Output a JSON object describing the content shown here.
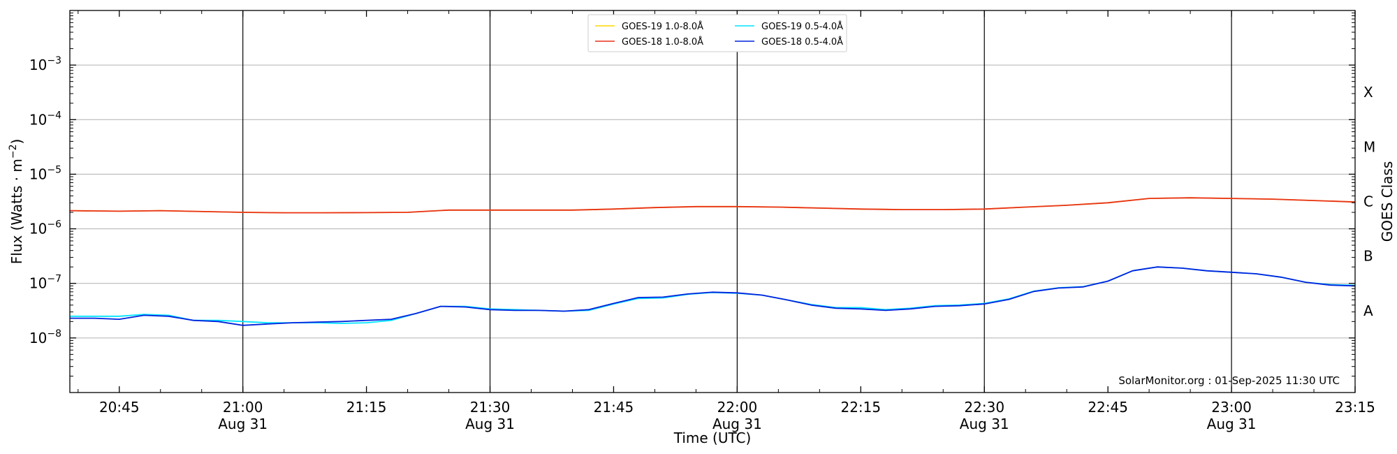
{
  "chart_data": {
    "type": "line",
    "xlabel": "Time (UTC)",
    "ylabel": "Flux (Watts · m",
    "ylabel_sup": "−2",
    "ylabel_close": ")",
    "y2label": "GOES Class",
    "x_range": [
      "2025-08-31 20:39",
      "2025-08-31 23:15"
    ],
    "ylim": [
      1e-09,
      0.01
    ],
    "y_scale": "log",
    "grid": "horizontal",
    "legend_position": "top-center",
    "x_ticks": [
      {
        "time": "20:45",
        "date": ""
      },
      {
        "time": "21:00",
        "date": "Aug 31"
      },
      {
        "time": "21:15",
        "date": ""
      },
      {
        "time": "21:30",
        "date": "Aug 31"
      },
      {
        "time": "21:45",
        "date": ""
      },
      {
        "time": "22:00",
        "date": "Aug 31"
      },
      {
        "time": "22:15",
        "date": ""
      },
      {
        "time": "22:30",
        "date": "Aug 31"
      },
      {
        "time": "22:45",
        "date": ""
      },
      {
        "time": "23:00",
        "date": "Aug 31"
      },
      {
        "time": "23:15",
        "date": ""
      }
    ],
    "y_ticks": [
      {
        "value": 1e-08,
        "base": "10",
        "exp": "−8"
      },
      {
        "value": 1e-07,
        "base": "10",
        "exp": "−7"
      },
      {
        "value": 1e-06,
        "base": "10",
        "exp": "−6"
      },
      {
        "value": 1e-05,
        "base": "10",
        "exp": "−5"
      },
      {
        "value": 0.0001,
        "base": "10",
        "exp": "−4"
      },
      {
        "value": 0.001,
        "base": "10",
        "exp": "−3"
      }
    ],
    "vertical_lines": [
      "21:00",
      "21:30",
      "22:00",
      "22:30",
      "23:00"
    ],
    "goes_classes": [
      {
        "label": "A",
        "value": 3.16e-08
      },
      {
        "label": "B",
        "value": 3.16e-07
      },
      {
        "label": "C",
        "value": 3.16e-06
      },
      {
        "label": "M",
        "value": 3.16e-05
      },
      {
        "label": "X",
        "value": 0.000316
      }
    ],
    "legend": [
      {
        "name": "GOES-19 1.0-8.0Å",
        "color": "#ffd700"
      },
      {
        "name": "GOES-19 0.5-4.0Å",
        "color": "#00e5ff"
      },
      {
        "name": "GOES-18 1.0-8.0Å",
        "color": "#e8311a"
      },
      {
        "name": "GOES-18 0.5-4.0Å",
        "color": "#0022dd"
      }
    ],
    "series": [
      {
        "name": "GOES-19 1.0-8.0Å",
        "color": "#ffd700",
        "x": [
          "20:39",
          "20:45",
          "20:50",
          "21:00",
          "21:05",
          "21:10",
          "21:15",
          "21:20",
          "21:25",
          "21:30",
          "21:35",
          "21:40",
          "21:45",
          "21:50",
          "21:55",
          "22:00",
          "22:05",
          "22:10",
          "22:15",
          "22:20",
          "22:25",
          "22:30",
          "22:35",
          "22:40",
          "22:45",
          "22:50",
          "22:55",
          "23:00",
          "23:05",
          "23:10",
          "23:15"
        ],
        "y": [
          2.15e-06,
          2.1e-06,
          2.15e-06,
          2e-06,
          1.97e-06,
          1.97e-06,
          1.98e-06,
          2e-06,
          2.2e-06,
          2.2e-06,
          2.2e-06,
          2.2e-06,
          2.3e-06,
          2.45e-06,
          2.55e-06,
          2.55e-06,
          2.5e-06,
          2.4e-06,
          2.3e-06,
          2.25e-06,
          2.25e-06,
          2.3e-06,
          2.5e-06,
          2.7e-06,
          3e-06,
          3.6e-06,
          3.7e-06,
          3.6e-06,
          3.5e-06,
          3.3e-06,
          3.1e-06
        ]
      },
      {
        "name": "GOES-18 1.0-8.0Å",
        "color": "#e8311a",
        "x": [
          "20:39",
          "20:45",
          "20:50",
          "21:00",
          "21:05",
          "21:10",
          "21:15",
          "21:20",
          "21:25",
          "21:30",
          "21:35",
          "21:40",
          "21:45",
          "21:50",
          "21:55",
          "22:00",
          "22:05",
          "22:10",
          "22:15",
          "22:20",
          "22:25",
          "22:30",
          "22:35",
          "22:40",
          "22:45",
          "22:50",
          "22:55",
          "23:00",
          "23:05",
          "23:10",
          "23:15"
        ],
        "y": [
          2.15e-06,
          2.1e-06,
          2.15e-06,
          2e-06,
          1.97e-06,
          1.97e-06,
          1.98e-06,
          2e-06,
          2.2e-06,
          2.2e-06,
          2.2e-06,
          2.2e-06,
          2.3e-06,
          2.45e-06,
          2.55e-06,
          2.55e-06,
          2.5e-06,
          2.4e-06,
          2.3e-06,
          2.25e-06,
          2.25e-06,
          2.3e-06,
          2.5e-06,
          2.7e-06,
          3e-06,
          3.6e-06,
          3.7e-06,
          3.6e-06,
          3.5e-06,
          3.3e-06,
          3.1e-06
        ]
      },
      {
        "name": "GOES-19 0.5-4.0Å",
        "color": "#00e5ff",
        "x": [
          "20:39",
          "20:42",
          "20:45",
          "20:48",
          "20:51",
          "20:54",
          "20:57",
          "21:00",
          "21:03",
          "21:06",
          "21:09",
          "21:12",
          "21:15",
          "21:18",
          "21:21",
          "21:24",
          "21:27",
          "21:30",
          "21:33",
          "21:36",
          "21:39",
          "21:42",
          "21:45",
          "21:48",
          "21:51",
          "21:54",
          "21:57",
          "22:00",
          "22:03",
          "22:06",
          "22:09",
          "22:12",
          "22:15",
          "22:18",
          "22:21",
          "22:24",
          "22:27",
          "22:30",
          "22:33",
          "22:36",
          "22:39",
          "22:42",
          "22:45",
          "22:48",
          "22:51",
          "22:54",
          "22:57",
          "23:00",
          "23:03",
          "23:06",
          "23:09",
          "23:12",
          "23:15"
        ],
        "y": [
          2.5e-08,
          2.5e-08,
          2.5e-08,
          2.7e-08,
          2.6e-08,
          2.1e-08,
          2.1e-08,
          2e-08,
          1.9e-08,
          1.9e-08,
          1.9e-08,
          1.85e-08,
          1.9e-08,
          2.1e-08,
          2.8e-08,
          3.8e-08,
          3.8e-08,
          3.4e-08,
          3.3e-08,
          3.2e-08,
          3.1e-08,
          3.2e-08,
          4.2e-08,
          5.3e-08,
          5.4e-08,
          6.3e-08,
          6.8e-08,
          6.6e-08,
          6.1e-08,
          5e-08,
          4.1e-08,
          3.6e-08,
          3.6e-08,
          3.3e-08,
          3.5e-08,
          3.9e-08,
          4e-08,
          4.3e-08,
          5.2e-08,
          7.2e-08,
          8.3e-08,
          8.7e-08,
          1.1e-07,
          1.7e-07,
          2e-07,
          1.9e-07,
          1.7e-07,
          1.6e-07,
          1.5e-07,
          1.3e-07,
          1.05e-07,
          9.5e-08,
          9.2e-08
        ]
      },
      {
        "name": "GOES-18 0.5-4.0Å",
        "color": "#0022dd",
        "x": [
          "20:39",
          "20:42",
          "20:45",
          "20:48",
          "20:51",
          "20:54",
          "20:57",
          "21:00",
          "21:03",
          "21:06",
          "21:09",
          "21:12",
          "21:15",
          "21:18",
          "21:21",
          "21:24",
          "21:27",
          "21:30",
          "21:33",
          "21:36",
          "21:39",
          "21:42",
          "21:45",
          "21:48",
          "21:51",
          "21:54",
          "21:57",
          "22:00",
          "22:03",
          "22:06",
          "22:09",
          "22:12",
          "22:15",
          "22:18",
          "22:21",
          "22:24",
          "22:27",
          "22:30",
          "22:33",
          "22:36",
          "22:39",
          "22:42",
          "22:45",
          "22:48",
          "22:51",
          "22:54",
          "22:57",
          "23:00",
          "23:03",
          "23:06",
          "23:09",
          "23:12",
          "23:15"
        ],
        "y": [
          2.3e-08,
          2.3e-08,
          2.2e-08,
          2.6e-08,
          2.5e-08,
          2.1e-08,
          2e-08,
          1.7e-08,
          1.8e-08,
          1.9e-08,
          1.95e-08,
          2e-08,
          2.1e-08,
          2.2e-08,
          2.8e-08,
          3.8e-08,
          3.7e-08,
          3.3e-08,
          3.2e-08,
          3.2e-08,
          3.1e-08,
          3.3e-08,
          4.3e-08,
          5.5e-08,
          5.6e-08,
          6.4e-08,
          6.9e-08,
          6.7e-08,
          6.1e-08,
          5e-08,
          4e-08,
          3.5e-08,
          3.4e-08,
          3.2e-08,
          3.4e-08,
          3.8e-08,
          3.9e-08,
          4.2e-08,
          5.1e-08,
          7.1e-08,
          8.2e-08,
          8.6e-08,
          1.1e-07,
          1.7e-07,
          2e-07,
          1.9e-07,
          1.7e-07,
          1.6e-07,
          1.5e-07,
          1.3e-07,
          1.05e-07,
          9.3e-08,
          9e-08
        ]
      }
    ],
    "credit": "SolarMonitor.org : 01-Sep-2025 11:30 UTC"
  }
}
